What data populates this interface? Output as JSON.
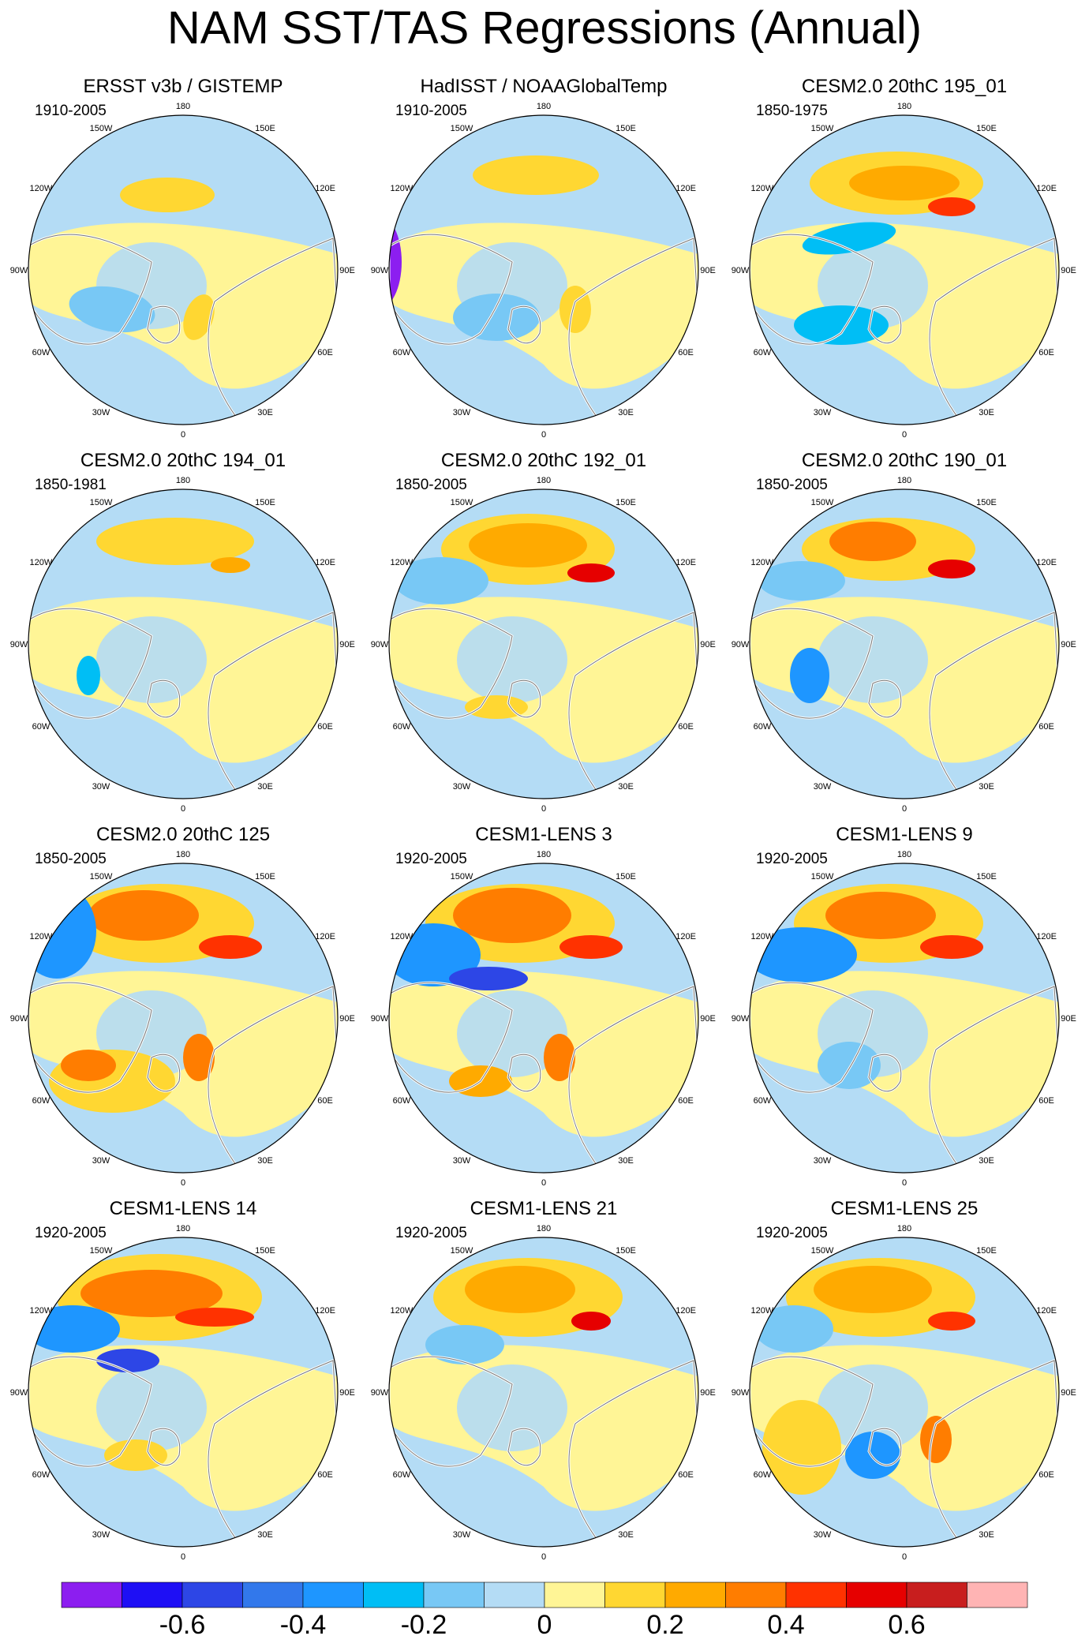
{
  "title": "NAM SST/TAS Regressions (Annual)",
  "panels": [
    {
      "title": "ERSST v3b / GISTEMP",
      "period": "1910-2005"
    },
    {
      "title": "HadISST / NOAAGlobalTemp",
      "period": "1910-2005"
    },
    {
      "title": "CESM2.0 20thC 195_01",
      "period": "1850-1975"
    },
    {
      "title": "CESM2.0 20thC 194_01",
      "period": "1850-1981"
    },
    {
      "title": "CESM2.0 20thC 192_01",
      "period": "1850-2005"
    },
    {
      "title": "CESM2.0 20thC 190_01",
      "period": "1850-2005"
    },
    {
      "title": "CESM2.0 20thC 125",
      "period": "1850-2005"
    },
    {
      "title": "CESM1-LENS 3",
      "period": "1920-2005"
    },
    {
      "title": "CESM1-LENS 9",
      "period": "1920-2005"
    },
    {
      "title": "CESM1-LENS 14",
      "period": "1920-2005"
    },
    {
      "title": "CESM1-LENS 21",
      "period": "1920-2005"
    },
    {
      "title": "CESM1-LENS 25",
      "period": "1920-2005"
    }
  ],
  "longitude_labels": [
    "180",
    "150E",
    "120E",
    "90E",
    "60E",
    "30E",
    "0",
    "30W",
    "60W",
    "90W",
    "120W",
    "150W"
  ],
  "colorbar": {
    "colors": [
      "#8c1ef0",
      "#1e0ff5",
      "#2d46e6",
      "#3278eb",
      "#1e96ff",
      "#00bef5",
      "#78c8f5",
      "#b4dcf5",
      "#fff596",
      "#ffd732",
      "#ffaa00",
      "#ff7d00",
      "#ff3200",
      "#e60000",
      "#c81e1e",
      "#ffb4b4"
    ],
    "tick_labels": [
      "-0.6",
      "-0.4",
      "-0.2",
      "0",
      "0.2",
      "0.4",
      "0.6"
    ]
  },
  "chart_data": {
    "type": "heatmap",
    "title": "NAM SST/TAS Regressions (Annual)",
    "projection": "north polar stereographic",
    "value_range": [
      -0.7,
      0.7
    ],
    "contour_interval": 0.1,
    "levels": [
      -0.7,
      -0.6,
      -0.5,
      -0.4,
      -0.3,
      -0.2,
      -0.1,
      0,
      0.1,
      0.2,
      0.3,
      0.4,
      0.5,
      0.6,
      0.7
    ],
    "panel_count": 12,
    "regions_mean_estimate": {
      "series": [
        {
          "name": "ERSST v3b / GISTEMP",
          "north_pacific": 0.15,
          "eurasia": 0.1,
          "greenland_sea": -0.15,
          "north_atlantic": 0.1
        },
        {
          "name": "HadISST / NOAAGlobalTemp",
          "north_pacific": 0.15,
          "eurasia": 0.1,
          "greenland_sea": -0.2,
          "north_atlantic": 0.05
        },
        {
          "name": "CESM2.0 20thC 195_01",
          "north_pacific": 0.3,
          "eurasia": 0.15,
          "greenland_sea": -0.2,
          "north_atlantic": -0.05
        },
        {
          "name": "CESM2.0 20thC 194_01",
          "north_pacific": 0.1,
          "eurasia": 0.1,
          "greenland_sea": -0.1,
          "north_atlantic": 0.1
        },
        {
          "name": "CESM2.0 20thC 192_01",
          "north_pacific": 0.3,
          "eurasia": 0.15,
          "greenland_sea": -0.1,
          "north_atlantic": 0.1
        },
        {
          "name": "CESM2.0 20thC 190_01",
          "north_pacific": 0.3,
          "eurasia": 0.1,
          "greenland_sea": -0.2,
          "north_atlantic": 0.05
        },
        {
          "name": "CESM2.0 20thC 125",
          "north_pacific": 0.35,
          "eurasia": 0.1,
          "greenland_sea": -0.2,
          "north_atlantic": 0.2
        },
        {
          "name": "CESM1-LENS 3",
          "north_pacific": 0.35,
          "eurasia": 0.1,
          "greenland_sea": -0.1,
          "north_atlantic": 0.1
        },
        {
          "name": "CESM1-LENS 9",
          "north_pacific": 0.35,
          "eurasia": 0.1,
          "greenland_sea": -0.1,
          "north_atlantic": 0.05
        },
        {
          "name": "CESM1-LENS 14",
          "north_pacific": 0.35,
          "eurasia": 0.1,
          "greenland_sea": -0.1,
          "north_atlantic": 0.1
        },
        {
          "name": "CESM1-LENS 21",
          "north_pacific": 0.3,
          "eurasia": 0.1,
          "greenland_sea": -0.05,
          "north_atlantic": 0.1
        },
        {
          "name": "CESM1-LENS 25",
          "north_pacific": 0.3,
          "eurasia": 0.1,
          "greenland_sea": -0.2,
          "north_atlantic": 0.15
        }
      ]
    }
  }
}
